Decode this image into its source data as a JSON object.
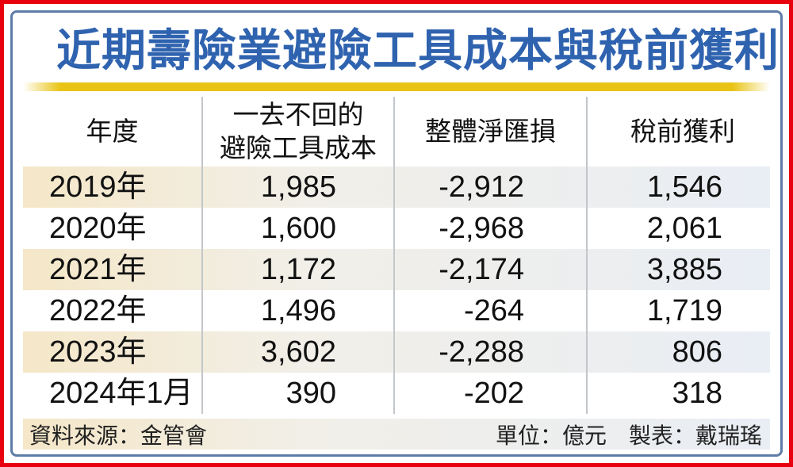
{
  "title": "近期壽險業避險工具成本與稅前獲利",
  "colors": {
    "outer_border_red": "#e8000f",
    "inner_border_blue": "#5f7ca8",
    "title_blue": "#2f63af",
    "rule_gold": "#e9c417",
    "row_shade_left_cream": "#f5e7c8",
    "row_shade_right_blue": "#e9edf4",
    "divider_gray": "#c3c6ca"
  },
  "table": {
    "columns": [
      {
        "label": "年度"
      },
      {
        "line1": "一去不回的",
        "line2": "避險工具成本"
      },
      {
        "label": "整體淨匯損"
      },
      {
        "label": "稅前獲利"
      }
    ],
    "rows": [
      {
        "year": "2019年",
        "cost": "1,985",
        "fx": "-2,912",
        "profit": "1,546"
      },
      {
        "year": "2020年",
        "cost": "1,600",
        "fx": "-2,968",
        "profit": "2,061"
      },
      {
        "year": "2021年",
        "cost": "1,172",
        "fx": "-2,174",
        "profit": "3,885"
      },
      {
        "year": "2022年",
        "cost": "1,496",
        "fx": "-264",
        "profit": "1,719"
      },
      {
        "year": "2023年",
        "cost": "3,602",
        "fx": "-2,288",
        "profit": "806"
      },
      {
        "year": "2024年1月",
        "cost": "390",
        "fx": "-202",
        "profit": "318"
      }
    ]
  },
  "footer": {
    "source": "資料來源：金管會",
    "unit": "單位：億元",
    "credit": "製表：戴瑞瑤"
  },
  "chart_data": {
    "type": "table",
    "title": "近期壽險業避險工具成本與稅前獲利",
    "unit": "億元",
    "categories": [
      "2019年",
      "2020年",
      "2021年",
      "2022年",
      "2023年",
      "2024年1月"
    ],
    "series": [
      {
        "name": "一去不回的避險工具成本",
        "values": [
          1985,
          1600,
          1172,
          1496,
          3602,
          390
        ]
      },
      {
        "name": "整體淨匯損",
        "values": [
          -2912,
          -2968,
          -2174,
          -264,
          -2288,
          -202
        ]
      },
      {
        "name": "稅前獲利",
        "values": [
          1546,
          2061,
          3885,
          1719,
          806,
          318
        ]
      }
    ],
    "source": "金管會",
    "credit": "戴瑞瑤"
  }
}
